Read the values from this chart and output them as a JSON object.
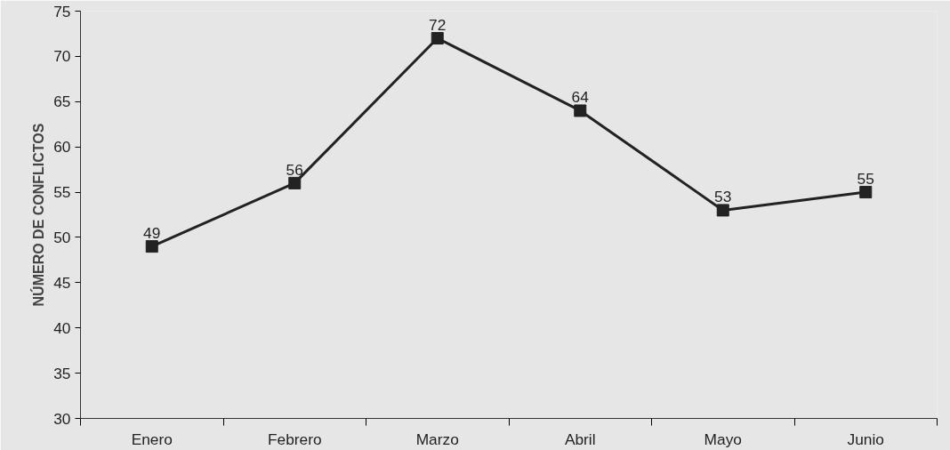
{
  "chart_data": {
    "type": "line",
    "ylabel": "NÚMERO DE CONFLICTOS",
    "categories": [
      "Enero",
      "Febrero",
      "Marzo",
      "Abril",
      "Mayo",
      "Junio"
    ],
    "series": [
      {
        "color": "#222222",
        "values": [
          49,
          56,
          72,
          64,
          53,
          55
        ]
      }
    ],
    "ylim": [
      30,
      75
    ],
    "yticks": [
      30,
      35,
      40,
      45,
      50,
      55,
      60,
      65,
      70,
      75
    ],
    "marker": "square",
    "line_style": "solid",
    "data_labels": true
  }
}
